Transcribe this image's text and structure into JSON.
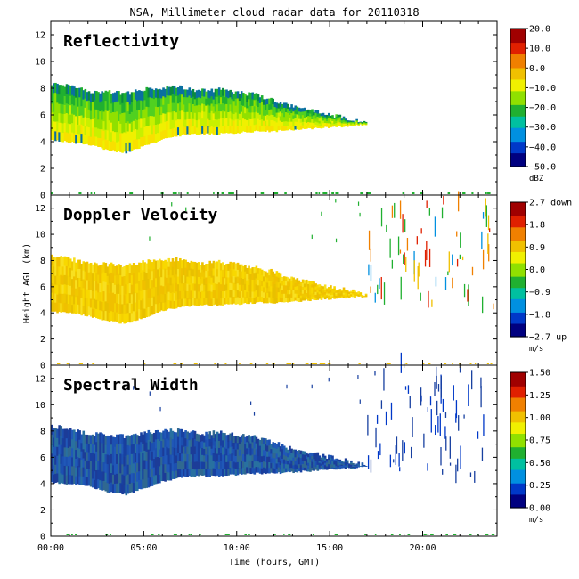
{
  "title": "NSA, Millimeter cloud radar data for 20110318",
  "x_axis": {
    "label": "Time (hours, GMT)",
    "ticks": [
      "00:00",
      "05:00",
      "10:00",
      "15:00",
      "20:00"
    ],
    "tick_values": [
      0,
      5,
      10,
      15,
      20
    ],
    "range": [
      0,
      24
    ]
  },
  "y_axis": {
    "label": "Height AGL (km)",
    "ticks": [
      "0",
      "2",
      "4",
      "6",
      "8",
      "10",
      "12"
    ],
    "tick_values": [
      0,
      2,
      4,
      6,
      8,
      10,
      12
    ],
    "range": [
      0,
      13
    ]
  },
  "colors": {
    "scale": [
      "#000080",
      "#0038c8",
      "#0090e0",
      "#00c0a0",
      "#20b030",
      "#90e000",
      "#f0f000",
      "#f0c000",
      "#f08000",
      "#e02000",
      "#a00000"
    ]
  },
  "chart_data": [
    {
      "type": "heatmap",
      "panel_title": "Reflectivity",
      "colorbar": {
        "ticks": [
          "20.0",
          "10.0",
          "0.0",
          "−10.0",
          "−20.0",
          "−30.0",
          "−40.0",
          "−50.0"
        ],
        "unit": "dBZ",
        "range": [
          -50,
          20
        ]
      },
      "cloud_base_top_km": {
        "hours": [
          0,
          1,
          2,
          3,
          4,
          5,
          6,
          7,
          8,
          9,
          10,
          11,
          12,
          13,
          14,
          15,
          16,
          16.9
        ],
        "base": [
          4.1,
          4.0,
          3.8,
          3.4,
          3.2,
          3.7,
          4.2,
          4.5,
          4.6,
          4.6,
          4.7,
          4.8,
          4.8,
          4.9,
          5.0,
          5.1,
          5.2,
          5.3
        ],
        "top": [
          8.4,
          8.1,
          7.8,
          7.7,
          7.6,
          7.9,
          8.0,
          8.1,
          7.8,
          7.9,
          7.7,
          7.5,
          7.1,
          6.6,
          6.3,
          6.0,
          5.7,
          5.4
        ]
      },
      "typical_value": "-20 to -10 dBZ (green to yellow)"
    },
    {
      "type": "heatmap",
      "panel_title": "Doppler Velocity",
      "colorbar": {
        "ticks": [
          "2.7 down",
          "1.8",
          "0.9",
          "0.0",
          "−0.9",
          "−1.8",
          "−2.7 up"
        ],
        "unit": "m/s",
        "range": [
          -2.7,
          2.7
        ]
      },
      "cloud_base_top_km": {
        "hours": [
          0,
          1,
          2,
          3,
          4,
          5,
          6,
          7,
          8,
          9,
          10,
          11,
          12,
          13,
          14,
          15,
          16,
          16.9
        ],
        "base": [
          4.1,
          4.0,
          3.8,
          3.4,
          3.2,
          3.7,
          4.2,
          4.5,
          4.6,
          4.6,
          4.7,
          4.8,
          4.8,
          4.9,
          5.0,
          5.1,
          5.2,
          5.3
        ],
        "top": [
          8.4,
          8.1,
          7.8,
          7.7,
          7.6,
          7.9,
          8.0,
          8.1,
          7.8,
          7.9,
          7.7,
          7.5,
          7.1,
          6.6,
          6.3,
          6.0,
          5.7,
          5.4
        ]
      },
      "typical_value": "about 0.0 to 0.3 m/s (yellow)"
    },
    {
      "type": "heatmap",
      "panel_title": "Spectral Width",
      "colorbar": {
        "ticks": [
          "1.50",
          "1.25",
          "1.00",
          "0.75",
          "0.50",
          "0.25",
          "0.00"
        ],
        "unit": "m/s",
        "range": [
          0,
          1.5
        ]
      },
      "cloud_base_top_km": {
        "hours": [
          0,
          1,
          2,
          3,
          4,
          5,
          6,
          7,
          8,
          9,
          10,
          11,
          12,
          13,
          14,
          15,
          16,
          16.9
        ],
        "base": [
          4.1,
          4.0,
          3.8,
          3.4,
          3.2,
          3.7,
          4.2,
          4.5,
          4.6,
          4.6,
          4.7,
          4.8,
          4.8,
          4.9,
          5.0,
          5.1,
          5.2,
          5.3
        ],
        "top": [
          8.4,
          8.1,
          7.8,
          7.7,
          7.6,
          7.9,
          8.0,
          8.1,
          7.8,
          7.9,
          7.7,
          7.5,
          7.1,
          6.6,
          6.3,
          6.0,
          5.7,
          5.4
        ]
      },
      "typical_value": "about 0.1 to 0.25 m/s (dark blue)"
    }
  ]
}
